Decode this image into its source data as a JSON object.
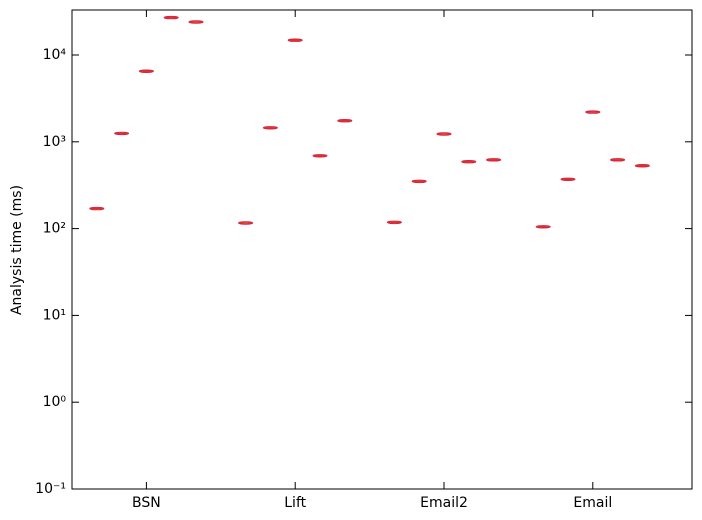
{
  "chart_data": {
    "type": "box",
    "y_label": "Analysis time (ms)",
    "x": [
      1,
      2,
      3,
      4,
      5,
      7,
      8,
      9,
      10,
      11,
      13,
      14,
      15,
      16,
      17,
      19,
      20,
      21,
      22,
      23
    ],
    "values": [
      170,
      1250,
      6500,
      27000,
      24000,
      116,
      1450,
      14800,
      690,
      1750,
      118,
      350,
      1230,
      590,
      620,
      105,
      370,
      2200,
      620,
      530
    ],
    "xlim": [
      0,
      25
    ],
    "xticks": [
      {
        "value": 3,
        "label": "BSN"
      },
      {
        "value": 9,
        "label": "Lift"
      },
      {
        "value": 15,
        "label": "Email2"
      },
      {
        "value": 21,
        "label": "Email"
      }
    ],
    "ylim": [
      0.1,
      33000
    ],
    "log_y": true,
    "yticks": [
      {
        "value": 0.1,
        "label": "10⁻¹"
      },
      {
        "value": 1,
        "label": "10⁰"
      },
      {
        "value": 10,
        "label": "10¹"
      },
      {
        "value": 100,
        "label": "10²"
      },
      {
        "value": 1000,
        "label": "10³"
      },
      {
        "value": 10000,
        "label": "10⁴"
      }
    ],
    "color": "#d0204a",
    "median_color": "#e03020"
  }
}
